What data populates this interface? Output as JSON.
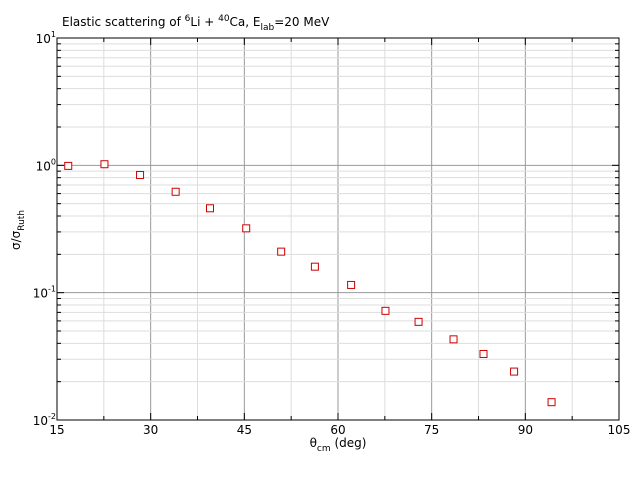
{
  "chart_data": {
    "type": "scatter",
    "title_parts": {
      "prefix": "Elastic scattering of ",
      "a1_mass": "6",
      "a1_sym": "Li + ",
      "a2_mass": "40",
      "a2_sym": "Ca, E",
      "e_sub": "lab",
      "e_val": "=20 MeV"
    },
    "xlabel": {
      "main": "θ",
      "sub": "cm",
      "unit": " (deg)"
    },
    "ylabel": {
      "main": "σ/σ",
      "sub": "Ruth"
    },
    "xlim": [
      15,
      105
    ],
    "ylim": [
      0.01,
      10
    ],
    "yscale": "log",
    "x_ticks": [
      "15",
      "30",
      "45",
      "60",
      "75",
      "90",
      "105"
    ],
    "y_ticks": [
      {
        "base": "10",
        "exp": "-2"
      },
      {
        "base": "10",
        "exp": "-1"
      },
      {
        "base": "10",
        "exp": "0"
      },
      {
        "base": "10",
        "exp": "1"
      }
    ],
    "grid": true,
    "marker": "open-square",
    "marker_color": "#cc0000",
    "points": [
      {
        "x": 16.8,
        "y": 0.99
      },
      {
        "x": 22.6,
        "y": 1.02
      },
      {
        "x": 28.3,
        "y": 0.84
      },
      {
        "x": 34.0,
        "y": 0.62
      },
      {
        "x": 39.5,
        "y": 0.46
      },
      {
        "x": 45.3,
        "y": 0.32
      },
      {
        "x": 50.9,
        "y": 0.21
      },
      {
        "x": 56.3,
        "y": 0.16
      },
      {
        "x": 62.1,
        "y": 0.115
      },
      {
        "x": 67.6,
        "y": 0.072
      },
      {
        "x": 72.9,
        "y": 0.059
      },
      {
        "x": 78.5,
        "y": 0.043
      },
      {
        "x": 83.3,
        "y": 0.033
      },
      {
        "x": 88.2,
        "y": 0.024
      },
      {
        "x": 94.2,
        "y": 0.0138
      }
    ]
  }
}
